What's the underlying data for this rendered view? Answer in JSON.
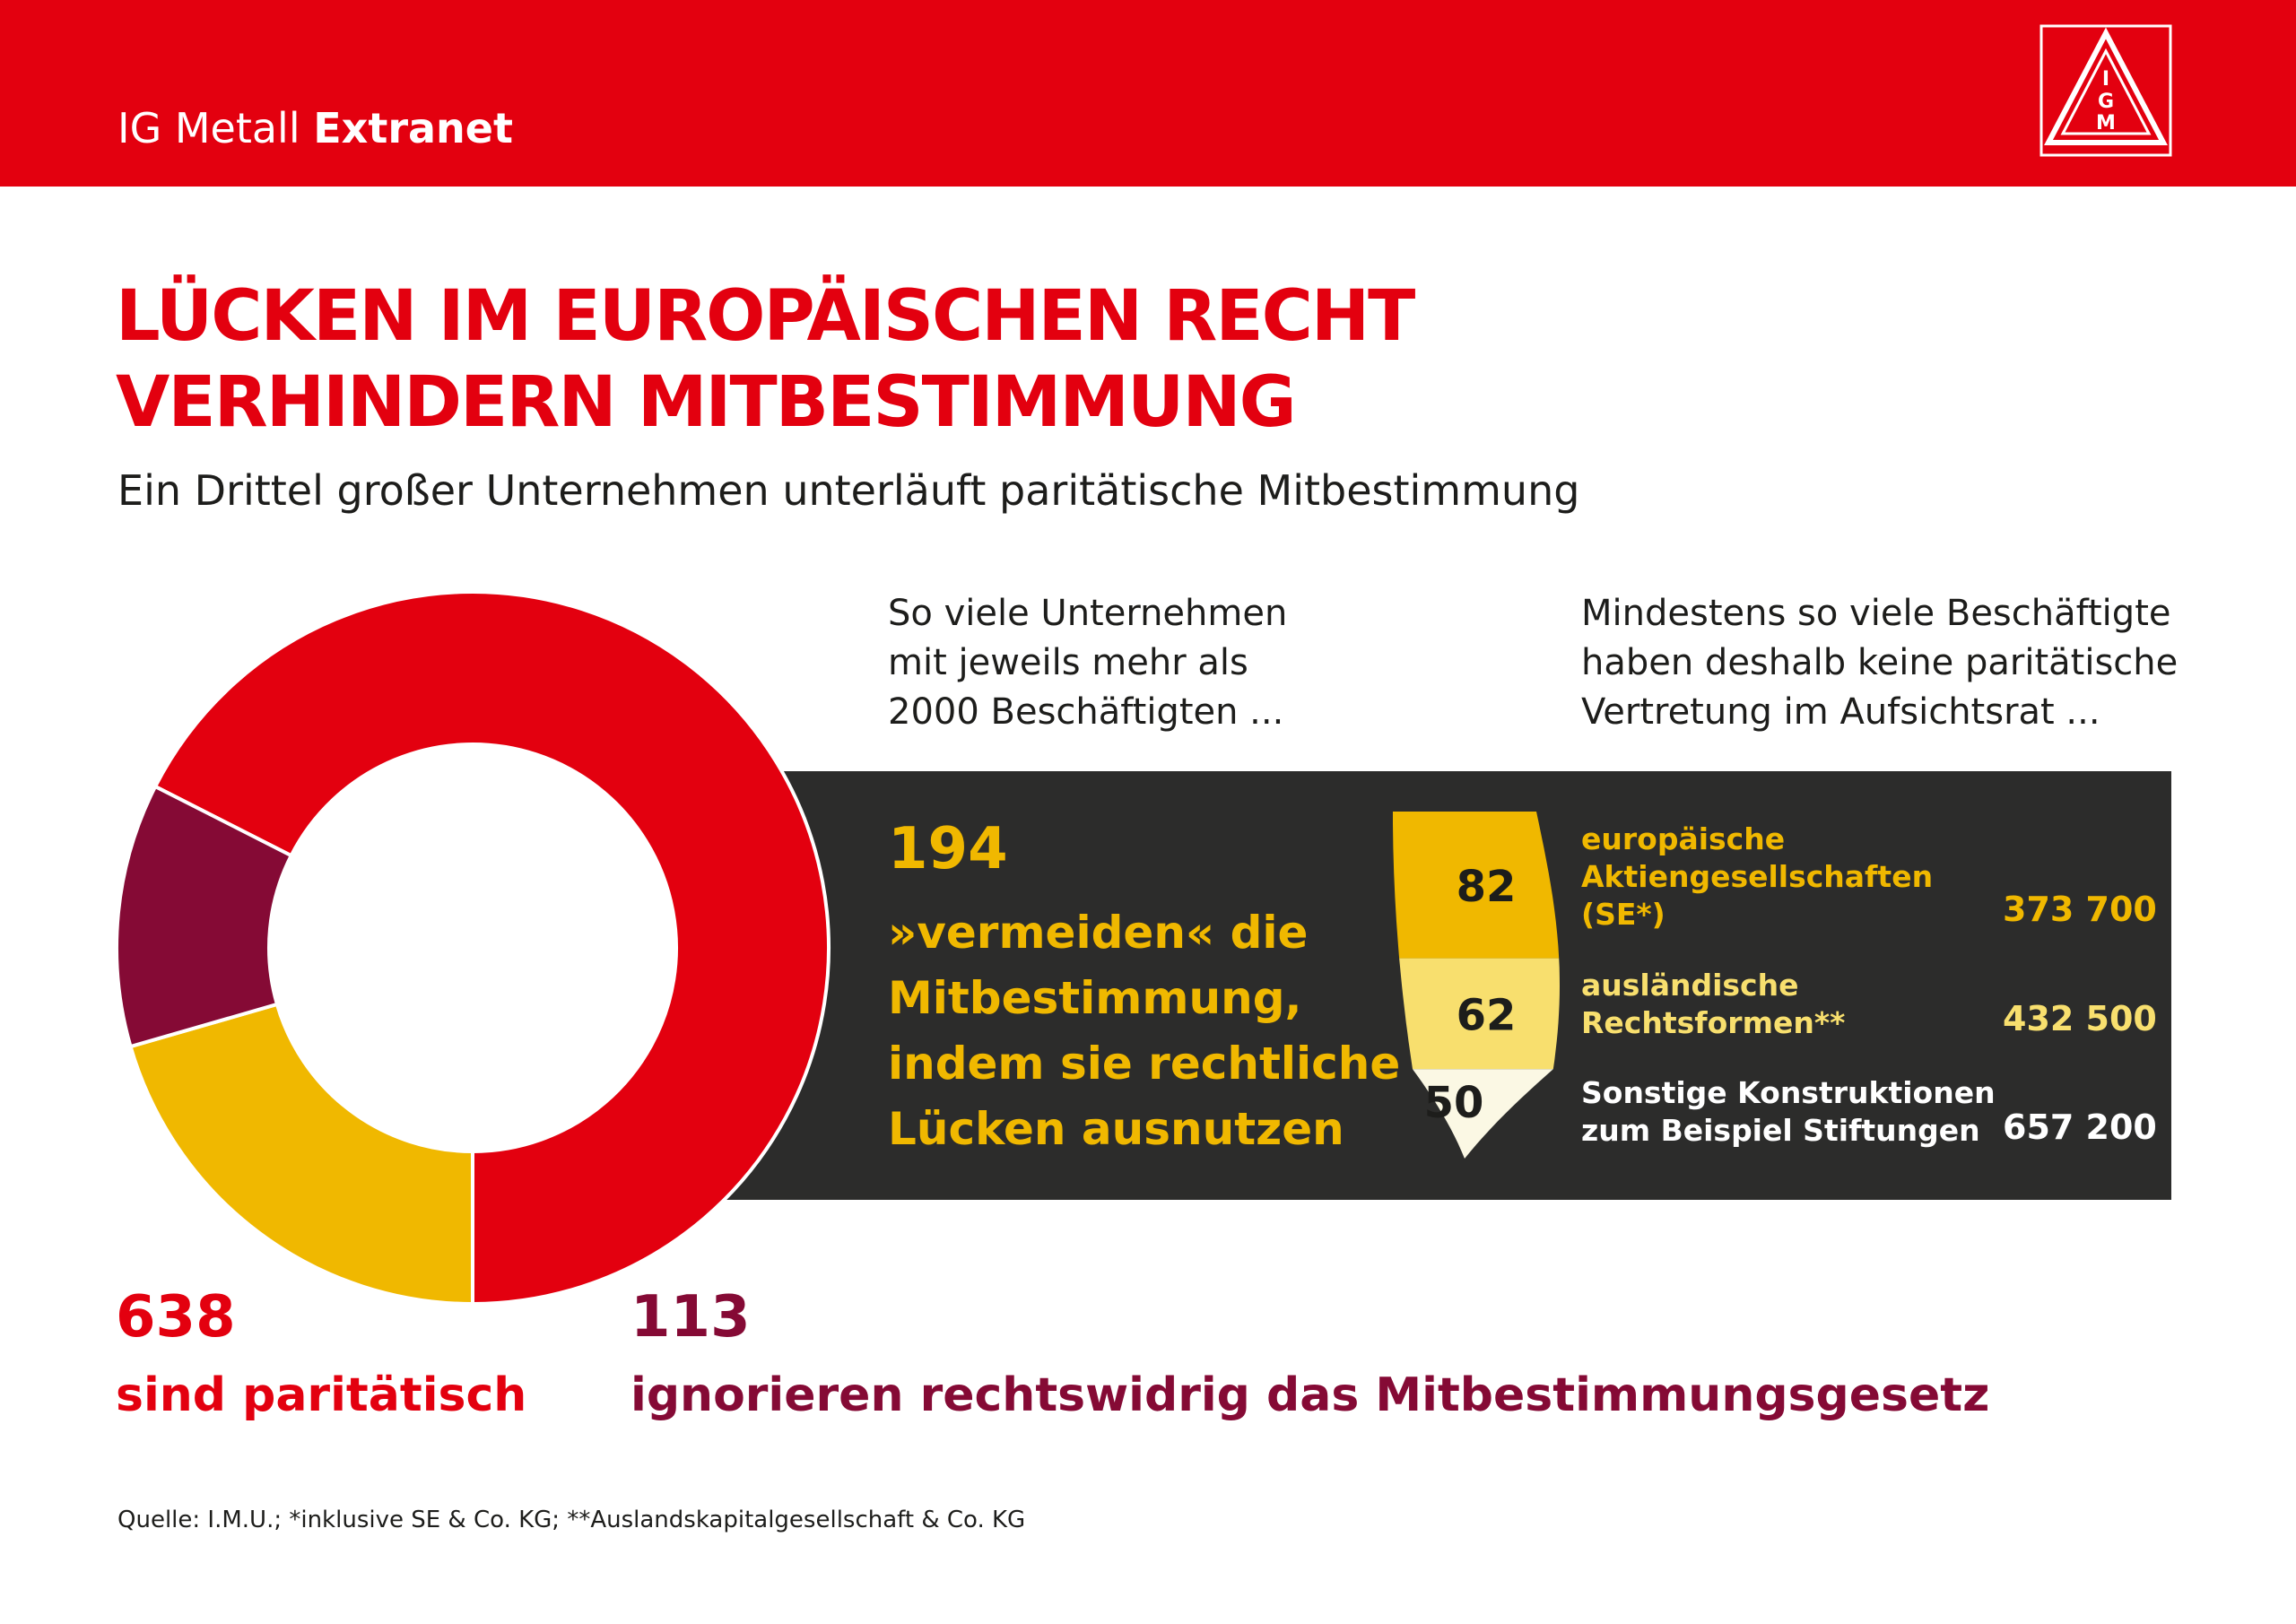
{
  "header": {
    "brand_regular": "IG Metall",
    "brand_bold": "Extranet",
    "logo_letters": [
      "I",
      "G",
      "M"
    ]
  },
  "title_lines": [
    "LÜCKEN IM EUROPÄISCHEN RECHT",
    "VERHINDERN MITBESTIMMUNG"
  ],
  "subtitle": "Ein Drittel großer Unternehmen unterläuft paritätische Mitbestimmung",
  "column_left_intro": [
    "So viele Unternehmen",
    "mit jeweils mehr als",
    "2000 Beschäftigten ..."
  ],
  "column_right_intro": [
    "Mindestens so viele Beschäftigte",
    "haben deshalb keine paritätische",
    "Vertretung im Aufsichtsrat ..."
  ],
  "avoid_text_lines": [
    "»vermeiden« die",
    "Mitbestimmung,",
    "indem sie rechtliche",
    "Lücken ausnutzen"
  ],
  "parity_label": "sind paritätisch",
  "ignore_label": "ignorieren rechtswidrig das Mitbestimmungsgesetz",
  "footnote": "Quelle: I.M.U.; *inklusive SE & Co. KG; **Auslandskapitalgesellschaft & Co. KG",
  "colors": {
    "red": "#e3000f",
    "yellow": "#f0b800",
    "light_yellow": "#f8df6e",
    "cream": "#fbf8e4",
    "dark_red": "#850a35",
    "panel": "#2c2c2b"
  },
  "chart_data": [
    {
      "type": "pie",
      "variant": "donut",
      "title": "",
      "slices": [
        {
          "label": "sind paritätisch",
          "value": 638,
          "value_label": "638",
          "color": "#e3000f"
        },
        {
          "label": "»vermeiden« die Mitbestimmung",
          "value": 194,
          "value_label": "194",
          "color": "#f0b800"
        },
        {
          "label": "ignorieren rechtswidrig das Mitbestimmungsgesetz",
          "value": 113,
          "value_label": "113",
          "color": "#850a35"
        }
      ]
    },
    {
      "type": "table",
      "title": "",
      "columns": [
        "Unternehmen",
        "Beschäftigte"
      ],
      "rows": [
        {
          "label_lines": [
            "europäische",
            "Aktiengesellschaften",
            "(SE*)"
          ],
          "companies": 82,
          "companies_label": "82",
          "employees": 373700,
          "employees_label": "373 700",
          "color": "#f0b800",
          "text_color": "#f0b800"
        },
        {
          "label_lines": [
            "ausländische",
            "Rechtsformen**"
          ],
          "companies": 62,
          "companies_label": "62",
          "employees": 432500,
          "employees_label": "432 500",
          "color": "#f8df6e",
          "text_color": "#f8df6e"
        },
        {
          "label_lines": [
            "Sonstige Konstruktionen",
            "zum Beispiel Stiftungen"
          ],
          "companies": 50,
          "companies_label": "50",
          "employees": 657200,
          "employees_label": "657 200",
          "color": "#fbf8e4",
          "text_color": "#ffffff"
        }
      ]
    }
  ]
}
